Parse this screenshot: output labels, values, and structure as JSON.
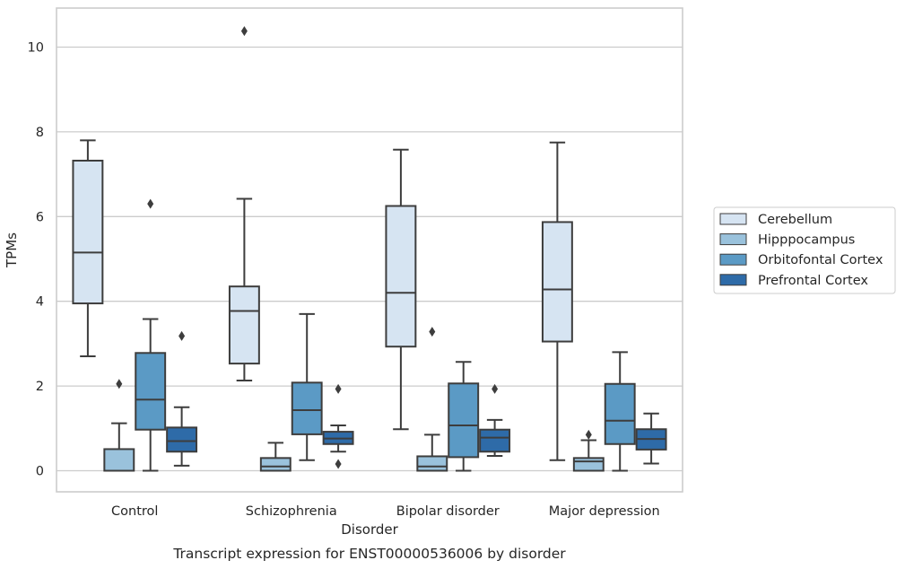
{
  "chart_data": {
    "type": "box",
    "xlabel": "Disorder",
    "ylabel": "TPMs",
    "caption": "Transcript expression for ENST00000536006 by disorder",
    "ylim": [
      -0.5,
      10.9
    ],
    "yticks": [
      0,
      2,
      4,
      6,
      8,
      10
    ],
    "grid": true,
    "legend_position": "right",
    "categories": [
      "Control",
      "Schizophrenia",
      "Bipolar disorder",
      "Major depression"
    ],
    "series": [
      {
        "name": "Cerebellum",
        "color": "#d6e4f2",
        "boxes": [
          {
            "whislo": 2.7,
            "q1": 3.95,
            "med": 5.15,
            "q3": 7.32,
            "whishi": 7.8,
            "fliers": []
          },
          {
            "whislo": 2.13,
            "q1": 2.53,
            "med": 3.77,
            "q3": 4.35,
            "whishi": 6.42,
            "fliers": [
              10.38
            ]
          },
          {
            "whislo": 0.98,
            "q1": 2.93,
            "med": 4.2,
            "q3": 6.25,
            "whishi": 7.58,
            "fliers": []
          },
          {
            "whislo": 0.25,
            "q1": 3.05,
            "med": 4.28,
            "q3": 5.87,
            "whishi": 7.75,
            "fliers": []
          }
        ]
      },
      {
        "name": "Hipppocampus",
        "color": "#9ac2dc",
        "boxes": [
          {
            "whislo": 0.0,
            "q1": 0.0,
            "med": 0.0,
            "q3": 0.51,
            "whishi": 1.12,
            "fliers": [
              2.05
            ]
          },
          {
            "whislo": 0.0,
            "q1": 0.0,
            "med": 0.1,
            "q3": 0.3,
            "whishi": 0.66,
            "fliers": []
          },
          {
            "whislo": 0.0,
            "q1": 0.0,
            "med": 0.1,
            "q3": 0.34,
            "whishi": 0.85,
            "fliers": [
              3.28
            ]
          },
          {
            "whislo": 0.0,
            "q1": 0.0,
            "med": 0.22,
            "q3": 0.3,
            "whishi": 0.72,
            "fliers": [
              0.85
            ]
          }
        ]
      },
      {
        "name": "Orbitofontal Cortex",
        "color": "#5b9ac5",
        "boxes": [
          {
            "whislo": 0.0,
            "q1": 0.97,
            "med": 1.68,
            "q3": 2.78,
            "whishi": 3.58,
            "fliers": [
              6.3
            ]
          },
          {
            "whislo": 0.25,
            "q1": 0.86,
            "med": 1.43,
            "q3": 2.08,
            "whishi": 3.7,
            "fliers": []
          },
          {
            "whislo": 0.0,
            "q1": 0.32,
            "med": 1.07,
            "q3": 2.06,
            "whishi": 2.57,
            "fliers": []
          },
          {
            "whislo": 0.0,
            "q1": 0.63,
            "med": 1.18,
            "q3": 2.05,
            "whishi": 2.8,
            "fliers": []
          }
        ]
      },
      {
        "name": "Prefrontal Cortex",
        "color": "#2e6ba8",
        "boxes": [
          {
            "whislo": 0.12,
            "q1": 0.45,
            "med": 0.7,
            "q3": 1.02,
            "whishi": 1.5,
            "fliers": [
              3.18
            ]
          },
          {
            "whislo": 0.45,
            "q1": 0.63,
            "med": 0.76,
            "q3": 0.92,
            "whishi": 1.07,
            "fliers": [
              1.93,
              0.16
            ]
          },
          {
            "whislo": 0.35,
            "q1": 0.45,
            "med": 0.78,
            "q3": 0.97,
            "whishi": 1.2,
            "fliers": [
              1.93
            ]
          },
          {
            "whislo": 0.17,
            "q1": 0.5,
            "med": 0.75,
            "q3": 0.98,
            "whishi": 1.35,
            "fliers": []
          }
        ]
      }
    ]
  }
}
